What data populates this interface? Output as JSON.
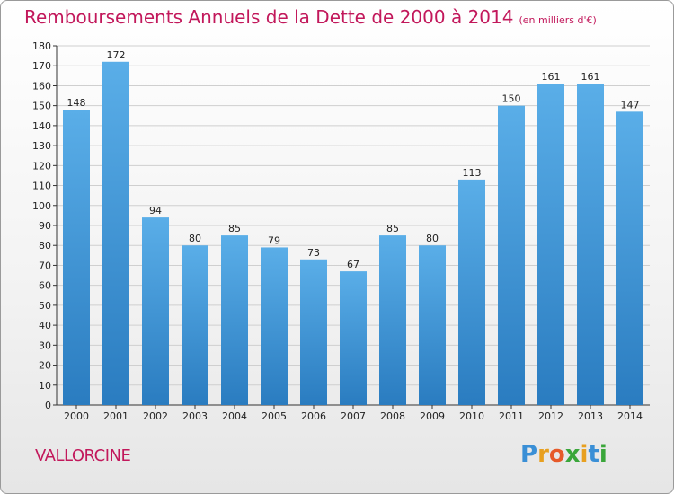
{
  "chart_data": {
    "type": "bar",
    "title": "Remboursements Annuels de la Dette de 2000 à 2014",
    "unit_note": "(en milliers d'€)",
    "categories": [
      "2000",
      "2001",
      "2002",
      "2003",
      "2004",
      "2005",
      "2006",
      "2007",
      "2008",
      "2009",
      "2010",
      "2011",
      "2012",
      "2013",
      "2014"
    ],
    "values": [
      148,
      172,
      94,
      80,
      85,
      79,
      73,
      67,
      85,
      80,
      113,
      150,
      161,
      161,
      147
    ],
    "ylim": [
      0,
      180
    ],
    "yticks": [
      0,
      10,
      20,
      30,
      40,
      50,
      60,
      70,
      80,
      90,
      100,
      110,
      120,
      130,
      140,
      150,
      160,
      170,
      180
    ],
    "grid": true,
    "xlabel": "",
    "ylabel": "",
    "bar_color_top": "#5aaee8",
    "bar_color_bottom": "#2a7cc0"
  },
  "commune": "VALLORCINE",
  "logo": {
    "letters": [
      {
        "char": "P",
        "color": "#3a8fd6"
      },
      {
        "char": "r",
        "color": "#e8a020"
      },
      {
        "char": "o",
        "color": "#e65a2a"
      },
      {
        "char": "x",
        "color": "#3aa63a"
      },
      {
        "char": "i",
        "color": "#e8a020"
      },
      {
        "char": "t",
        "color": "#3a8fd6"
      },
      {
        "char": "i",
        "color": "#3aa63a"
      }
    ]
  },
  "colors": {
    "title": "#c2185b",
    "axis": "#333333",
    "grid": "#cfcfcf"
  }
}
